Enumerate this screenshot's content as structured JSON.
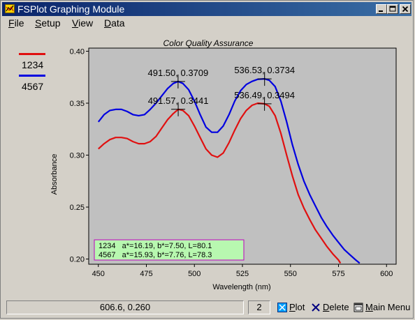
{
  "window": {
    "title": "FSPlot Graphing Module"
  },
  "menu": {
    "file": {
      "first": "F",
      "rest": "ile"
    },
    "setup": {
      "first": "S",
      "rest": "etup"
    },
    "view": {
      "first": "V",
      "rest": "iew"
    },
    "data": {
      "first": "D",
      "rest": "ata"
    }
  },
  "legend": [
    {
      "label": "1234",
      "color": "#e01010"
    },
    {
      "label": "4567",
      "color": "#0000e0"
    }
  ],
  "chart_data": {
    "type": "line",
    "title": "Color Quality Assurance",
    "xlabel": "Wavelength (nm)",
    "ylabel": "Absorbance",
    "xlim": [
      445,
      605
    ],
    "ylim": [
      0.195,
      0.403
    ],
    "xticks": [
      "450",
      "475",
      "500",
      "525",
      "550",
      "575",
      "600"
    ],
    "yticks": [
      "0.40",
      "0.35",
      "0.30",
      "0.25",
      "0.20"
    ],
    "plot_background": "#c0c0c0",
    "series": [
      {
        "name": "1234",
        "color": "#e01010",
        "x": [
          450,
          453,
          456,
          459,
          462,
          465,
          468,
          471,
          474,
          477,
          480,
          483,
          486,
          489,
          491.57,
          494,
          497,
          500,
          503,
          506,
          509,
          512,
          515,
          518,
          521,
          524,
          527,
          530,
          533,
          536.49,
          539,
          542,
          545,
          548,
          551,
          554,
          557,
          560,
          563,
          566,
          569,
          572,
          575,
          576
        ],
        "y": [
          0.306,
          0.311,
          0.315,
          0.317,
          0.317,
          0.316,
          0.313,
          0.311,
          0.311,
          0.313,
          0.318,
          0.326,
          0.334,
          0.34,
          0.3441,
          0.343,
          0.338,
          0.328,
          0.317,
          0.306,
          0.3,
          0.298,
          0.302,
          0.312,
          0.324,
          0.335,
          0.343,
          0.348,
          0.35,
          0.3494,
          0.347,
          0.338,
          0.321,
          0.3,
          0.28,
          0.262,
          0.249,
          0.238,
          0.228,
          0.22,
          0.212,
          0.205,
          0.199,
          0.196
        ]
      },
      {
        "name": "4567",
        "color": "#0000e0",
        "x": [
          450,
          453,
          456,
          459,
          462,
          465,
          468,
          471,
          474,
          477,
          480,
          483,
          486,
          489,
          491.5,
          494,
          497,
          500,
          503,
          506,
          509,
          512,
          515,
          518,
          521,
          524,
          527,
          530,
          533,
          536.53,
          539,
          542,
          545,
          548,
          551,
          554,
          557,
          560,
          563,
          566,
          569,
          572,
          575,
          578,
          581,
          584,
          586
        ],
        "y": [
          0.332,
          0.339,
          0.343,
          0.344,
          0.344,
          0.342,
          0.339,
          0.338,
          0.339,
          0.344,
          0.35,
          0.357,
          0.364,
          0.369,
          0.3709,
          0.369,
          0.363,
          0.352,
          0.339,
          0.327,
          0.322,
          0.322,
          0.328,
          0.339,
          0.352,
          0.362,
          0.368,
          0.371,
          0.373,
          0.3734,
          0.372,
          0.366,
          0.352,
          0.332,
          0.31,
          0.291,
          0.275,
          0.262,
          0.251,
          0.24,
          0.231,
          0.223,
          0.216,
          0.209,
          0.204,
          0.199,
          0.196
        ]
      }
    ],
    "peaks": [
      {
        "series": "4567",
        "x": 491.5,
        "y": 0.3709,
        "label": "491.50, 0.3709"
      },
      {
        "series": "1234",
        "x": 491.57,
        "y": 0.3441,
        "label": "491.57, 0.3441"
      },
      {
        "series": "4567",
        "x": 536.53,
        "y": 0.3734,
        "label": "536.53, 0.3734"
      },
      {
        "series": "1234",
        "x": 536.49,
        "y": 0.3494,
        "label": "536.49, 0.3494"
      }
    ],
    "info_box": {
      "background": "#b8f8b0",
      "border": "#c000c0",
      "lines": [
        "1234   a*=16.19, b*=7.50, L=80.1",
        "4567   a*=15.93, b*=7.76, L=78.3"
      ]
    }
  },
  "statusbar": {
    "coords": "606.6, 0.260",
    "count": "2",
    "plot": {
      "first": "P",
      "rest": "lot"
    },
    "delete": {
      "first": "D",
      "rest": "elete"
    },
    "main_menu": {
      "first": "M",
      "rest": "ain Menu"
    }
  }
}
